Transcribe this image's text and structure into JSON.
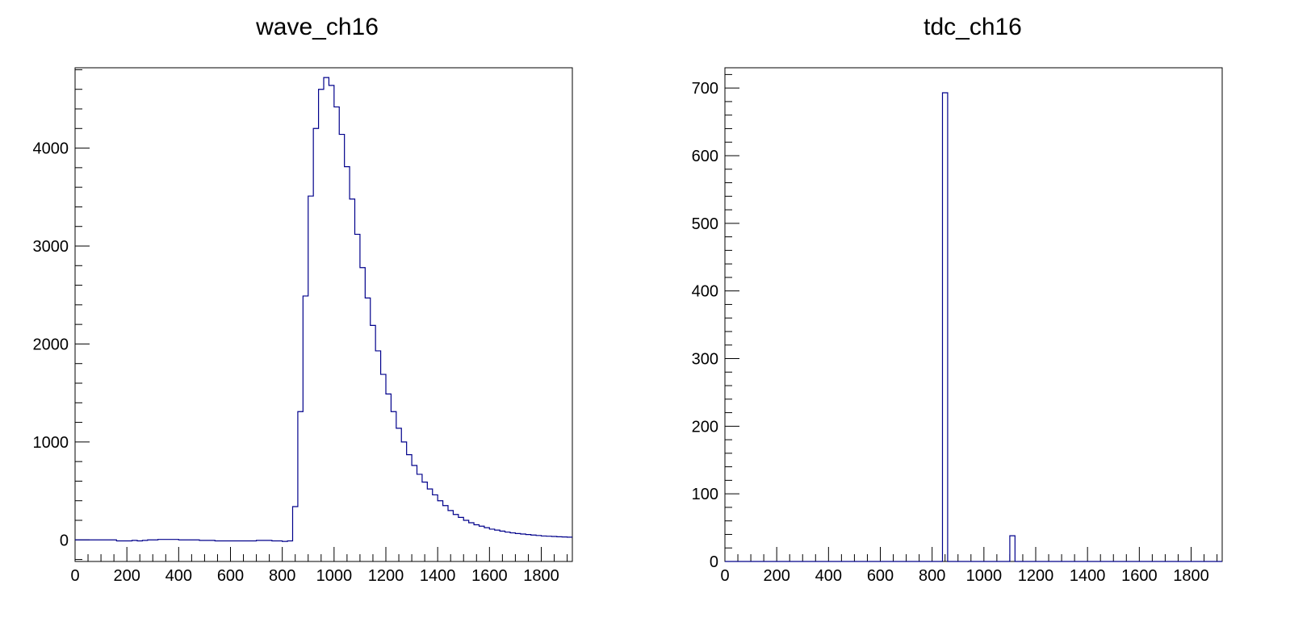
{
  "chart_data": [
    {
      "type": "line",
      "title": "wave_ch16",
      "xlabel": "",
      "ylabel": "",
      "xlim": [
        0,
        1920
      ],
      "ylim": [
        -220,
        4820
      ],
      "x_ticks": [
        0,
        200,
        400,
        600,
        800,
        1000,
        1200,
        1400,
        1600,
        1800
      ],
      "x_tick_labels": [
        "0",
        "200",
        "400",
        "600",
        "800",
        "1000",
        "1200",
        "1400",
        "1600",
        "1800"
      ],
      "y_ticks": [
        0,
        1000,
        2000,
        3000,
        4000
      ],
      "y_tick_labels": [
        "0",
        "1000",
        "2000",
        "3000",
        "4000"
      ],
      "grid": false,
      "line_color": "#00008b",
      "bin_width": 20,
      "series": [
        {
          "x": [
            0,
            20,
            40,
            60,
            80,
            100,
            120,
            140,
            160,
            180,
            200,
            220,
            240,
            260,
            280,
            300,
            320,
            340,
            360,
            380,
            400,
            420,
            440,
            460,
            480,
            500,
            520,
            540,
            560,
            580,
            600,
            620,
            640,
            660,
            680,
            700,
            720,
            740,
            760,
            780,
            800,
            820,
            840,
            860,
            880,
            900,
            920,
            940,
            960,
            980,
            1000,
            1020,
            1040,
            1060,
            1080,
            1100,
            1120,
            1140,
            1160,
            1180,
            1200,
            1220,
            1240,
            1260,
            1280,
            1300,
            1320,
            1340,
            1360,
            1380,
            1400,
            1420,
            1440,
            1460,
            1480,
            1500,
            1520,
            1540,
            1560,
            1580,
            1600,
            1620,
            1640,
            1660,
            1680,
            1700,
            1720,
            1740,
            1760,
            1780,
            1800,
            1820,
            1840,
            1860,
            1880,
            1900
          ],
          "values": [
            0,
            0,
            0,
            0,
            0,
            0,
            0,
            0,
            -10,
            -10,
            -10,
            -5,
            -10,
            -5,
            0,
            0,
            5,
            5,
            5,
            5,
            0,
            0,
            0,
            0,
            -5,
            -5,
            -5,
            -10,
            -10,
            -10,
            -10,
            -10,
            -10,
            -10,
            -10,
            -5,
            -5,
            -5,
            -10,
            -10,
            -15,
            -10,
            340,
            1310,
            2490,
            3510,
            4200,
            4600,
            4720,
            4640,
            4420,
            4140,
            3810,
            3480,
            3120,
            2780,
            2470,
            2190,
            1930,
            1690,
            1490,
            1310,
            1140,
            1000,
            870,
            760,
            670,
            590,
            520,
            460,
            400,
            350,
            300,
            260,
            230,
            200,
            175,
            155,
            140,
            125,
            110,
            100,
            90,
            80,
            72,
            65,
            60,
            55,
            50,
            45,
            40,
            38,
            35,
            32,
            30,
            28
          ]
        }
      ]
    },
    {
      "type": "line",
      "title": "tdc_ch16",
      "xlabel": "",
      "ylabel": "",
      "xlim": [
        0,
        1920
      ],
      "ylim": [
        0,
        730
      ],
      "x_ticks": [
        0,
        200,
        400,
        600,
        800,
        1000,
        1200,
        1400,
        1600,
        1800
      ],
      "x_tick_labels": [
        "0",
        "200",
        "400",
        "600",
        "800",
        "1000",
        "1200",
        "1400",
        "1600",
        "1800"
      ],
      "y_ticks": [
        0,
        100,
        200,
        300,
        400,
        500,
        600,
        700
      ],
      "y_tick_labels": [
        "0",
        "100",
        "200",
        "300",
        "400",
        "500",
        "600",
        "700"
      ],
      "grid": false,
      "line_color": "#00008b",
      "bin_width": 20,
      "series": [
        {
          "x": [
            820,
            840,
            860,
            1080,
            1100,
            1120,
            1140
          ],
          "values": [
            0,
            693,
            0,
            0,
            38,
            0,
            0
          ]
        }
      ]
    }
  ]
}
